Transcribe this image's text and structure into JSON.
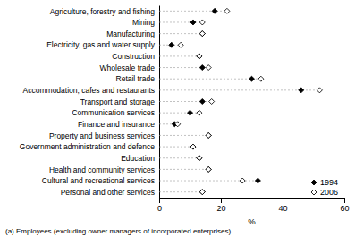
{
  "chart_data": {
    "type": "dot",
    "orientation": "horizontal",
    "categories": [
      "Agriculture, forestry and fishing",
      "Mining",
      "Manufacturing",
      "Electricity, gas and water supply",
      "Construction",
      "Wholesale trade",
      "Retail trade",
      "Accommodation, cafes and restaurants",
      "Transport and storage",
      "Communication services",
      "Finance and insurance",
      "Property and business services",
      "Government administration and defence",
      "Education",
      "Health and community services",
      "Cultural and recreational services",
      "Personal and other services"
    ],
    "series": [
      {
        "name": "1994",
        "color": "#000000",
        "marker": "diamond",
        "values": [
          18,
          11,
          14,
          4,
          13,
          14,
          30,
          46,
          14,
          10,
          5,
          16,
          11,
          13,
          16,
          32,
          14
        ]
      },
      {
        "name": "2006",
        "color": "#000000",
        "marker": "open-diamond",
        "values": [
          22,
          14,
          14,
          7,
          13,
          16,
          33,
          52,
          17,
          13,
          6,
          16,
          11,
          13,
          16,
          27,
          14
        ]
      }
    ],
    "xlabel": "%",
    "xlim": [
      0,
      60
    ],
    "xticks": [
      0,
      20,
      40,
      60
    ],
    "footnote": "(a) Employees (excluding owner managers of incorporated enterprises).",
    "legend": "lower right",
    "grid": false
  }
}
